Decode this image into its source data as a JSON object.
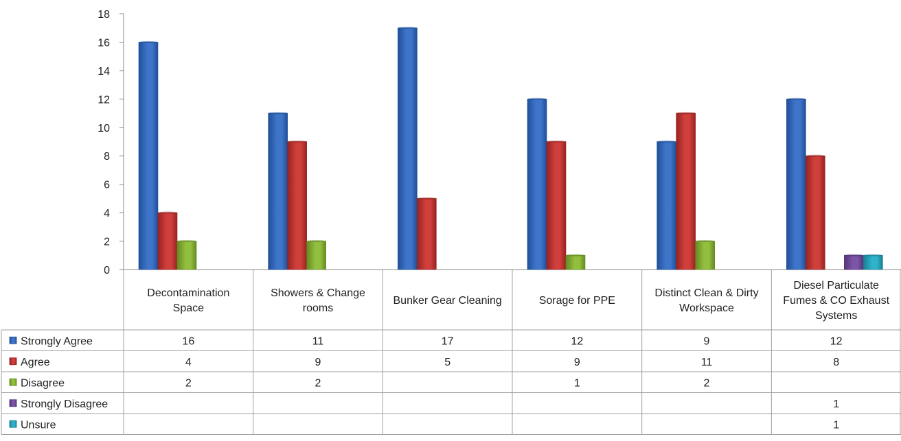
{
  "chart_data": {
    "type": "bar",
    "title": "",
    "xlabel": "",
    "ylabel": "",
    "ylim": [
      0,
      18
    ],
    "yticks": [
      0,
      2,
      4,
      6,
      8,
      10,
      12,
      14,
      16,
      18
    ],
    "grid": false,
    "legend": "data-table-left",
    "categories": [
      [
        "Decontamination",
        "Space"
      ],
      [
        "Showers & Change",
        "rooms"
      ],
      [
        "Bunker Gear Cleaning"
      ],
      [
        "Sorage for PPE"
      ],
      [
        "Distinct Clean & Dirty",
        "Workspace"
      ],
      [
        "Diesel Particulate",
        "Fumes & CO Exhaust",
        "Systems"
      ]
    ],
    "series": [
      {
        "name": "Strongly Agree",
        "color": "#3f75c9",
        "dark": "#1f4f99",
        "values": [
          16,
          11,
          17,
          12,
          9,
          12
        ]
      },
      {
        "name": "Agree",
        "color": "#cf3f3c",
        "dark": "#962321",
        "values": [
          4,
          9,
          5,
          9,
          11,
          8
        ]
      },
      {
        "name": "Disagree",
        "color": "#93bf3e",
        "dark": "#648a22",
        "values": [
          2,
          2,
          null,
          1,
          2,
          null
        ]
      },
      {
        "name": "Strongly Disagree",
        "color": "#7c55a8",
        "dark": "#553579",
        "values": [
          null,
          null,
          null,
          null,
          null,
          1
        ]
      },
      {
        "name": "Unsure",
        "color": "#2fb3cc",
        "dark": "#1a7f93",
        "values": [
          null,
          null,
          null,
          null,
          null,
          1
        ]
      }
    ]
  }
}
